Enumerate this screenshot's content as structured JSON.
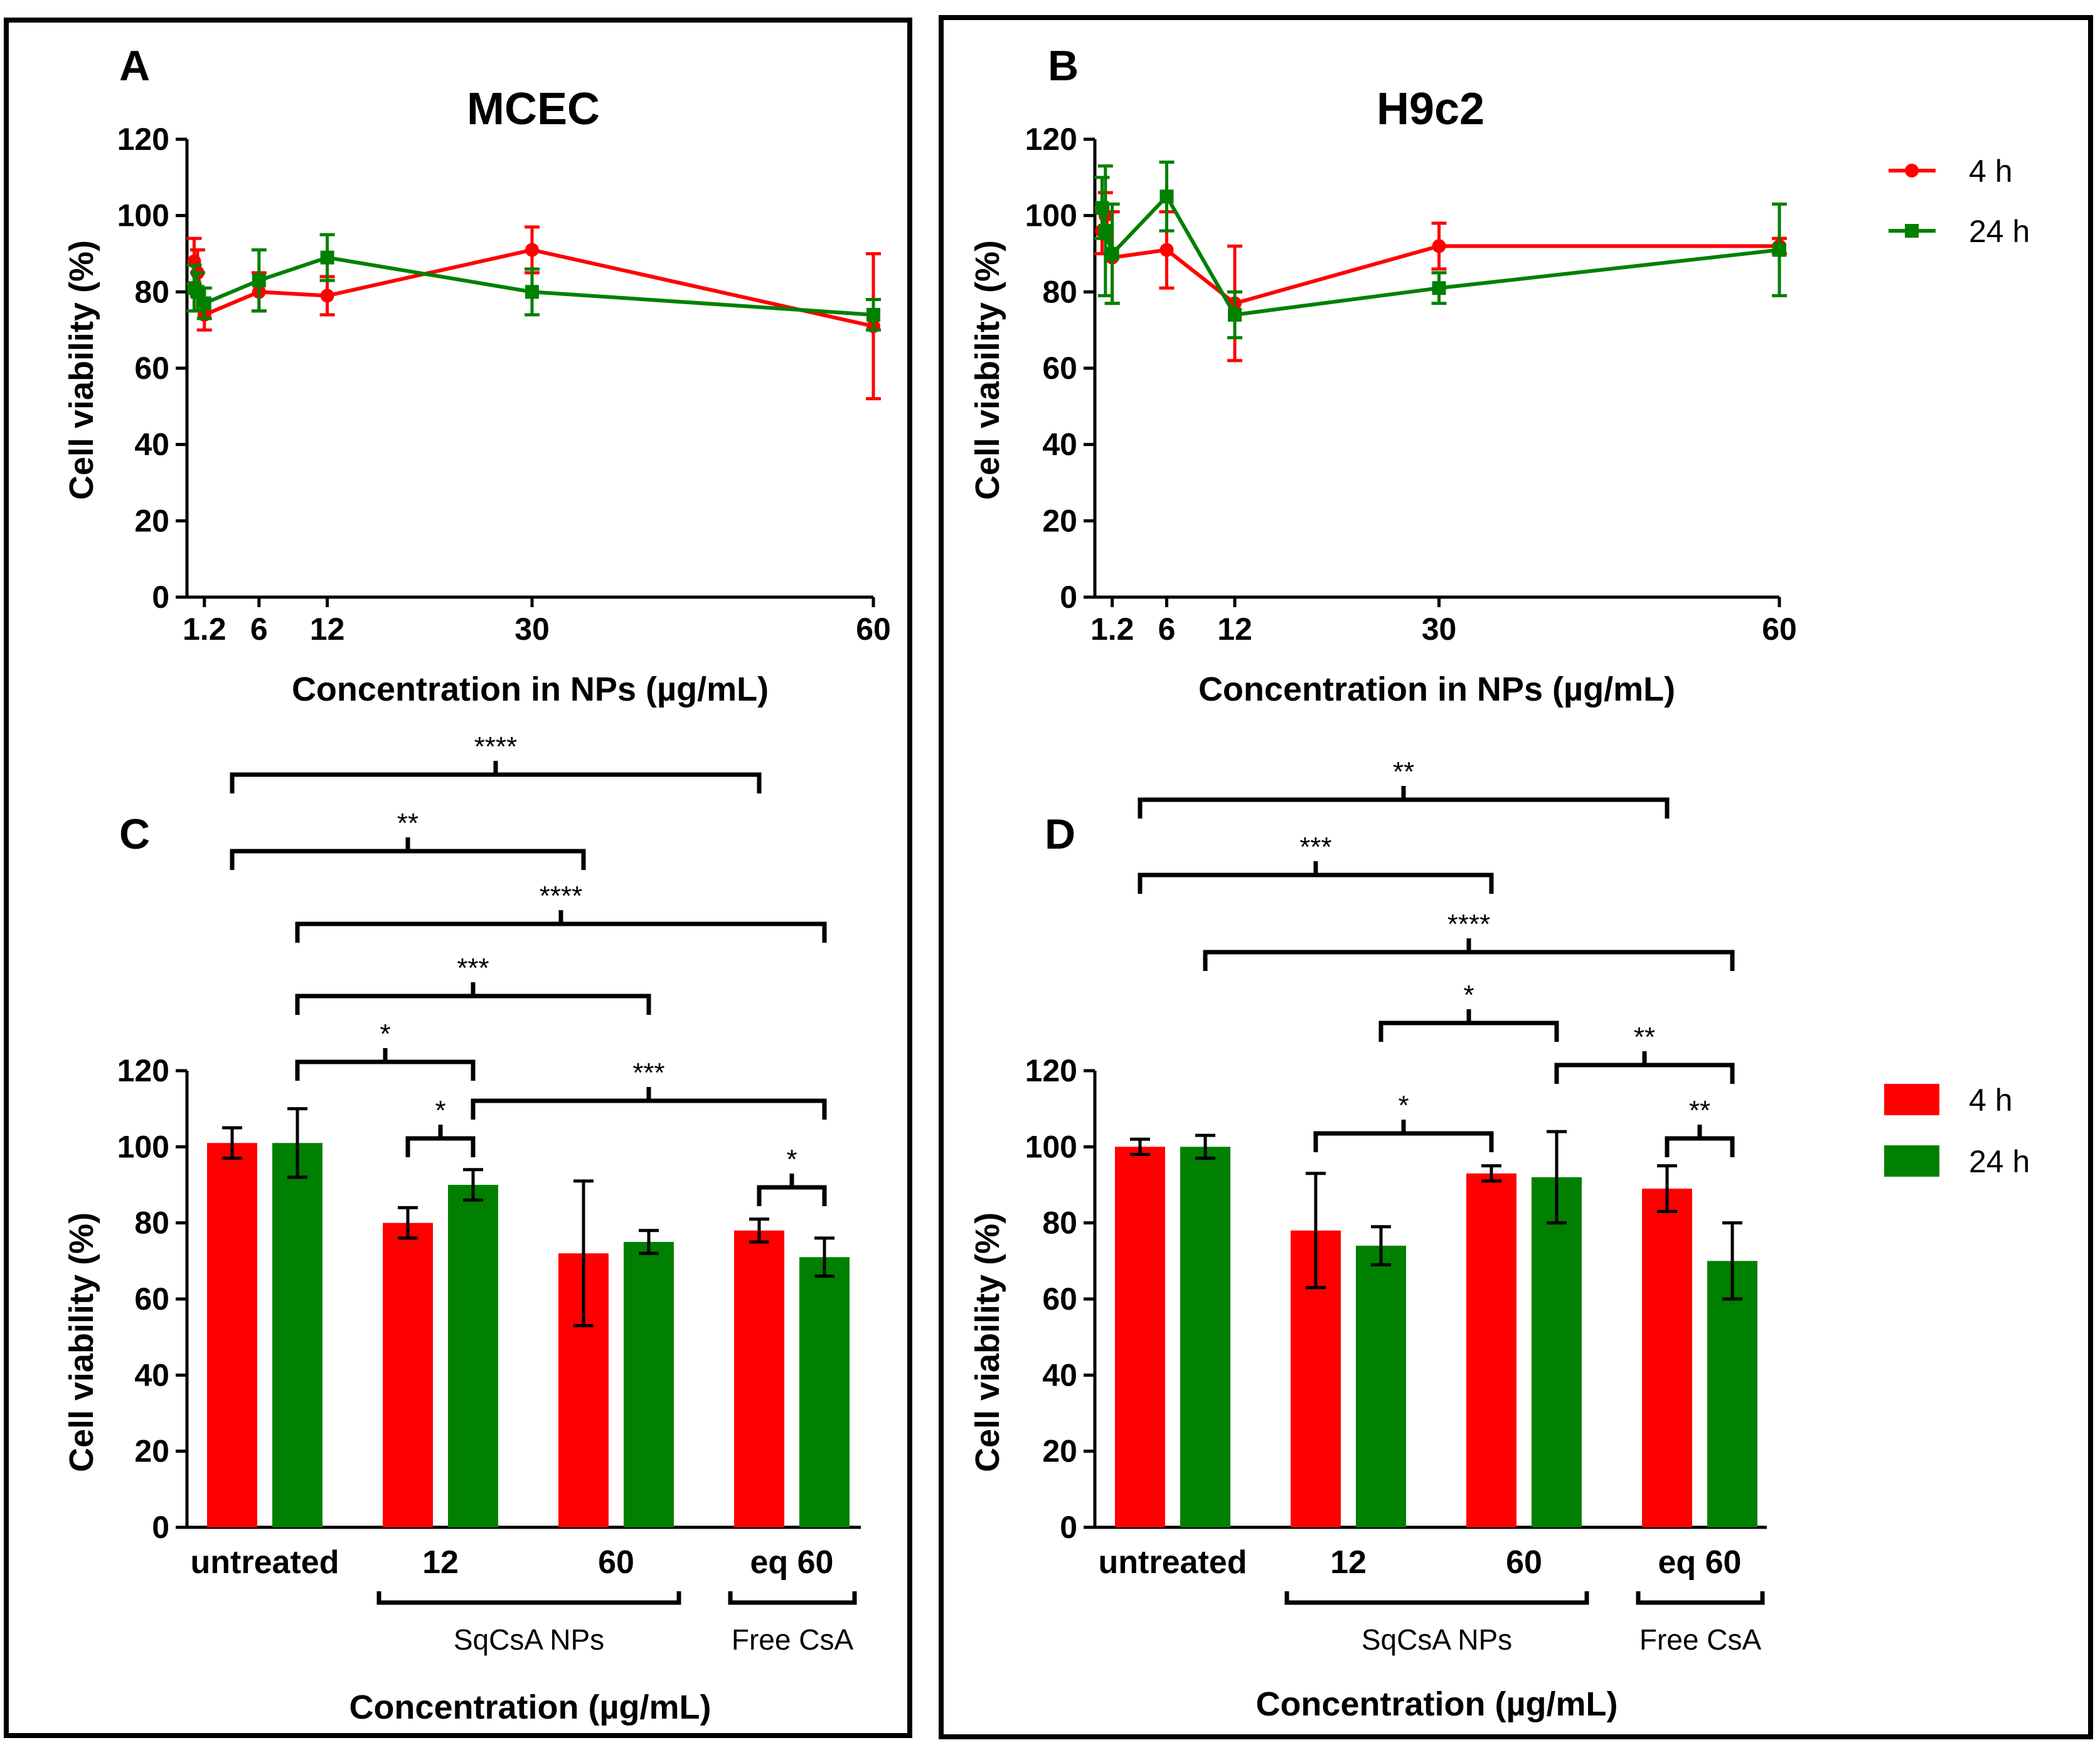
{
  "colors": {
    "red": "#ff0000",
    "green": "#008000",
    "black": "#000000"
  },
  "line_legend": [
    {
      "label": "4 h",
      "color": "#ff0000",
      "marker": "circle"
    },
    {
      "label": "24 h",
      "color": "#008000",
      "marker": "square"
    }
  ],
  "bar_legend": [
    {
      "label": "4 h",
      "color": "#ff0000"
    },
    {
      "label": "24 h",
      "color": "#008000"
    }
  ],
  "chart_data": [
    {
      "panel": "A",
      "type": "line",
      "title": "MCEC",
      "xlabel": "Concentration in NPs (µg/mL)",
      "ylabel": "Cell viability (%)",
      "xlim": [
        0,
        60
      ],
      "ylim": [
        0,
        120
      ],
      "yticks": [
        0,
        20,
        40,
        60,
        80,
        100,
        120
      ],
      "xtick_labels": [
        {
          "x": 1.2,
          "label": "1.2"
        },
        {
          "x": 6,
          "label": "6"
        },
        {
          "x": 12,
          "label": "12"
        },
        {
          "x": 30,
          "label": "30"
        },
        {
          "x": 60,
          "label": "60"
        }
      ],
      "series": [
        {
          "name": "4 h",
          "color": "#ff0000",
          "marker": "circle",
          "points": [
            {
              "x": 0.3,
              "y": 88,
              "err": 6
            },
            {
              "x": 0.6,
              "y": 85,
              "err": 6
            },
            {
              "x": 1.2,
              "y": 74,
              "err": 4
            },
            {
              "x": 6,
              "y": 80,
              "err": 5
            },
            {
              "x": 12,
              "y": 79,
              "err": 5
            },
            {
              "x": 30,
              "y": 91,
              "err": 6
            },
            {
              "x": 60,
              "y": 71,
              "err": 19
            }
          ]
        },
        {
          "name": "24 h",
          "color": "#008000",
          "marker": "square",
          "points": [
            {
              "x": 0.3,
              "y": 81,
              "err": 6
            },
            {
              "x": 0.6,
              "y": 80,
              "err": 5
            },
            {
              "x": 1.2,
              "y": 77,
              "err": 4
            },
            {
              "x": 6,
              "y": 83,
              "err": 8
            },
            {
              "x": 12,
              "y": 89,
              "err": 6
            },
            {
              "x": 30,
              "y": 80,
              "err": 6
            },
            {
              "x": 60,
              "y": 74,
              "err": 4
            }
          ]
        }
      ]
    },
    {
      "panel": "B",
      "type": "line",
      "title": "H9c2",
      "xlabel": "Concentration in NPs (µg/mL)",
      "ylabel": "Cell viability (%)",
      "xlim": [
        0,
        60
      ],
      "ylim": [
        0,
        120
      ],
      "yticks": [
        0,
        20,
        40,
        60,
        80,
        100,
        120
      ],
      "xtick_labels": [
        {
          "x": 1.2,
          "label": "1.2"
        },
        {
          "x": 6,
          "label": "6"
        },
        {
          "x": 12,
          "label": "12"
        },
        {
          "x": 30,
          "label": "30"
        },
        {
          "x": 60,
          "label": "60"
        }
      ],
      "series": [
        {
          "name": "4 h",
          "color": "#ff0000",
          "marker": "circle",
          "points": [
            {
              "x": 0.3,
              "y": 96,
              "err": 6
            },
            {
              "x": 0.6,
              "y": 100,
              "err": 6
            },
            {
              "x": 1.2,
              "y": 89,
              "err": 12
            },
            {
              "x": 6,
              "y": 91,
              "err": 10
            },
            {
              "x": 12,
              "y": 77,
              "err": 15
            },
            {
              "x": 30,
              "y": 92,
              "err": 6
            },
            {
              "x": 60,
              "y": 92,
              "err": 2
            }
          ]
        },
        {
          "name": "24 h",
          "color": "#008000",
          "marker": "square",
          "points": [
            {
              "x": 0.3,
              "y": 102,
              "err": 8
            },
            {
              "x": 0.6,
              "y": 96,
              "err": 17
            },
            {
              "x": 1.2,
              "y": 90,
              "err": 13
            },
            {
              "x": 6,
              "y": 105,
              "err": 9
            },
            {
              "x": 12,
              "y": 74,
              "err": 6
            },
            {
              "x": 30,
              "y": 81,
              "err": 4
            },
            {
              "x": 60,
              "y": 91,
              "err": 12
            }
          ]
        }
      ]
    },
    {
      "panel": "C",
      "type": "bar",
      "xlabel": "Concentration (µg/mL)",
      "ylabel": "Cell viability (%)",
      "ylim": [
        0,
        120
      ],
      "yticks": [
        0,
        20,
        40,
        60,
        80,
        100,
        120
      ],
      "categories": [
        "untreated",
        "12",
        "60",
        "eq 60"
      ],
      "series": [
        {
          "name": "4 h",
          "color": "#ff0000",
          "values": [
            101,
            80,
            72,
            78
          ],
          "errors": [
            4,
            4,
            19,
            3
          ]
        },
        {
          "name": "24 h",
          "color": "#008000",
          "values": [
            101,
            90,
            75,
            71
          ],
          "errors": [
            9,
            4,
            3,
            5
          ]
        }
      ],
      "groups": [
        {
          "label": "SqCsA NPs",
          "from": 1,
          "to": 2
        },
        {
          "label": "Free CsA",
          "from": 3,
          "to": 3
        }
      ],
      "significance": [
        {
          "label": "****",
          "from": [
            0,
            0
          ],
          "to": [
            3,
            0
          ]
        },
        {
          "label": "**",
          "from": [
            0,
            0
          ],
          "to": [
            2,
            0
          ]
        },
        {
          "label": "****",
          "from": [
            0,
            1
          ],
          "to": [
            3,
            1
          ]
        },
        {
          "label": "***",
          "from": [
            0,
            1
          ],
          "to": [
            2,
            1
          ]
        },
        {
          "label": "*",
          "from": [
            0,
            1
          ],
          "to": [
            1,
            1
          ]
        },
        {
          "label": "***",
          "from": [
            1,
            1
          ],
          "to": [
            3,
            1
          ]
        },
        {
          "label": "*",
          "from": [
            1,
            0
          ],
          "to": [
            1,
            1
          ]
        },
        {
          "label": "*",
          "from": [
            3,
            0
          ],
          "to": [
            3,
            1
          ]
        }
      ]
    },
    {
      "panel": "D",
      "type": "bar",
      "xlabel": "Concentration (µg/mL)",
      "ylabel": "Cell viability (%)",
      "ylim": [
        0,
        120
      ],
      "yticks": [
        0,
        20,
        40,
        60,
        80,
        100,
        120
      ],
      "categories": [
        "untreated",
        "12",
        "60",
        "eq 60"
      ],
      "series": [
        {
          "name": "4 h",
          "color": "#ff0000",
          "values": [
            100,
            78,
            93,
            89
          ],
          "errors": [
            2,
            15,
            2,
            6
          ]
        },
        {
          "name": "24 h",
          "color": "#008000",
          "values": [
            100,
            74,
            92,
            70
          ],
          "errors": [
            3,
            5,
            12,
            10
          ]
        }
      ],
      "groups": [
        {
          "label": "SqCsA NPs",
          "from": 1,
          "to": 2
        },
        {
          "label": "Free CsA",
          "from": 3,
          "to": 3
        }
      ],
      "significance": [
        {
          "label": "**",
          "from": [
            0,
            0
          ],
          "to": [
            3,
            0
          ]
        },
        {
          "label": "***",
          "from": [
            0,
            0
          ],
          "to": [
            2,
            0
          ]
        },
        {
          "label": "****",
          "from": [
            0,
            1
          ],
          "to": [
            3,
            1
          ]
        },
        {
          "label": "*",
          "from": [
            1,
            1
          ],
          "to": [
            2,
            1
          ]
        },
        {
          "label": "**",
          "from": [
            2,
            1
          ],
          "to": [
            3,
            1
          ]
        },
        {
          "label": "*",
          "from": [
            1,
            0
          ],
          "to": [
            2,
            0
          ]
        },
        {
          "label": "**",
          "from": [
            3,
            0
          ],
          "to": [
            3,
            1
          ]
        }
      ]
    }
  ]
}
